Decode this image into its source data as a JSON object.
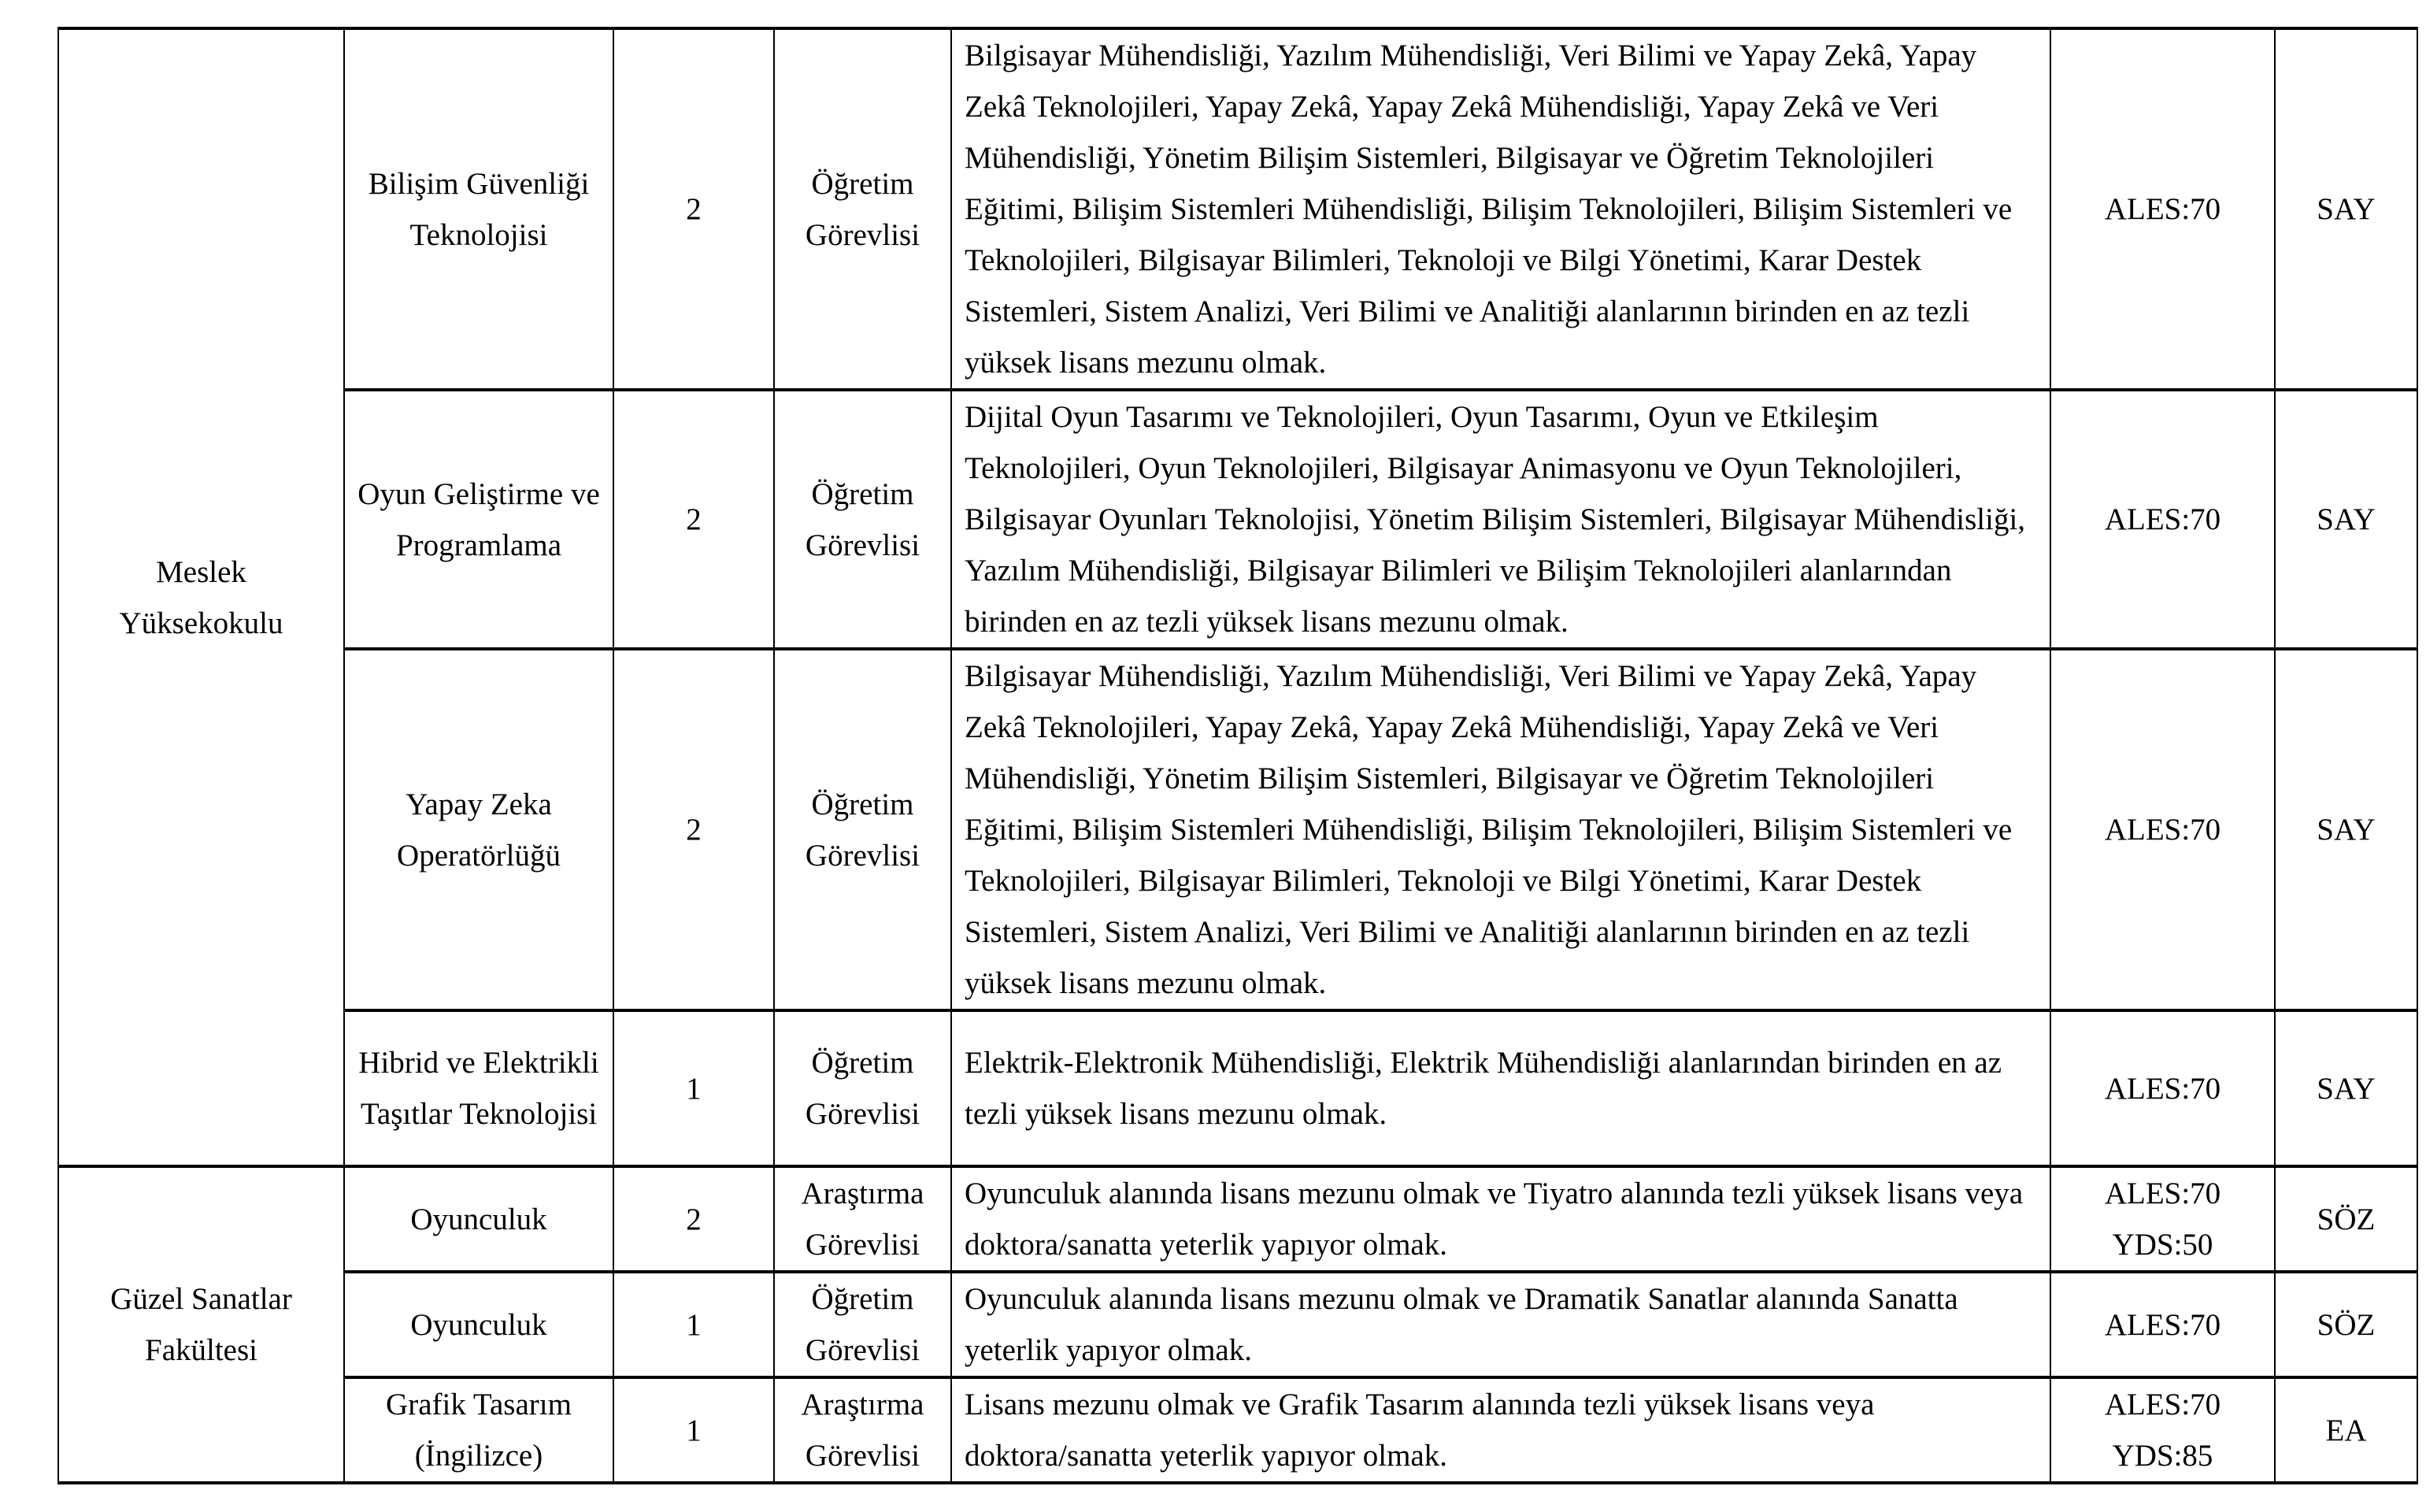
{
  "rows": [
    {
      "unit": "Meslek Yüksekokulu",
      "program": "Bilişim Güvenliği Teknolojisi",
      "count": "2",
      "title": "Öğretim Görevlisi",
      "requirement": "Bilgisayar Mühendisliği, Yazılım Mühendisliği, Veri Bilimi ve Yapay Zekâ, Yapay Zekâ Teknolojileri, Yapay Zekâ, Yapay Zekâ Mühendisliği, Yapay Zekâ ve Veri Mühendisliği, Yönetim Bilişim Sistemleri, Bilgisayar ve Öğretim Teknolojileri Eğitimi, Bilişim Sistemleri Mühendisliği, Bilişim Teknolojileri, Bilişim Sistemleri ve Teknolojileri, Bilgisayar Bilimleri, Teknoloji ve Bilgi Yönetimi, Karar Destek Sistemleri, Sistem Analizi, Veri Bilimi ve Analitiği alanlarının birinden en az tezli yüksek lisans mezunu olmak.",
      "exam": [
        "ALES:70"
      ],
      "score_type": "SAY"
    },
    {
      "program": "Oyun Geliştirme ve Programlama",
      "count": "2",
      "title": "Öğretim Görevlisi",
      "requirement": "Dijital Oyun Tasarımı ve Teknolojileri, Oyun Tasarımı, Oyun ve Etkileşim Teknolojileri, Oyun Teknolojileri, Bilgisayar Animasyonu ve Oyun Teknolojileri, Bilgisayar Oyunları Teknolojisi, Yönetim Bilişim Sistemleri, Bilgisayar Mühendisliği, Yazılım Mühendisliği, Bilgisayar Bilimleri ve Bilişim Teknolojileri alanlarından birinden en az tezli yüksek lisans mezunu olmak.",
      "exam": [
        "ALES:70"
      ],
      "score_type": "SAY"
    },
    {
      "program": "Yapay Zeka Operatörlüğü",
      "count": "2",
      "title": "Öğretim Görevlisi",
      "requirement": "Bilgisayar Mühendisliği, Yazılım Mühendisliği, Veri Bilimi ve Yapay Zekâ, Yapay Zekâ Teknolojileri, Yapay Zekâ, Yapay Zekâ Mühendisliği, Yapay Zekâ ve Veri Mühendisliği, Yönetim Bilişim Sistemleri, Bilgisayar ve Öğretim Teknolojileri Eğitimi, Bilişim Sistemleri Mühendisliği, Bilişim Teknolojileri, Bilişim Sistemleri ve Teknolojileri, Bilgisayar Bilimleri, Teknoloji ve Bilgi Yönetimi, Karar Destek Sistemleri, Sistem Analizi, Veri Bilimi ve Analitiği alanlarının birinden en az tezli yüksek lisans mezunu olmak.",
      "exam": [
        "ALES:70"
      ],
      "score_type": "SAY"
    },
    {
      "program": "Hibrid ve Elektrikli Taşıtlar Teknolojisi",
      "count": "1",
      "title": "Öğretim Görevlisi",
      "requirement": "Elektrik-Elektronik Mühendisliği, Elektrik Mühendisliği alanlarından birinden en az tezli yüksek lisans mezunu olmak.",
      "exam": [
        "ALES:70"
      ],
      "score_type": "SAY"
    },
    {
      "unit": "Güzel Sanatlar Fakültesi",
      "program": "Oyunculuk",
      "count": "2",
      "title": "Araştırma Görevlisi",
      "requirement": "Oyunculuk alanında lisans mezunu olmak ve Tiyatro alanında tezli yüksek lisans veya doktora/sanatta yeterlik yapıyor olmak.",
      "exam": [
        "ALES:70",
        "YDS:50"
      ],
      "score_type": "SÖZ"
    },
    {
      "program": "Oyunculuk",
      "count": "1",
      "title": "Öğretim Görevlisi",
      "requirement": "Oyunculuk alanında lisans mezunu olmak ve Dramatik Sanatlar alanında Sanatta yeterlik yapıyor olmak.",
      "exam": [
        "ALES:70"
      ],
      "score_type": "SÖZ"
    },
    {
      "program": "Grafik Tasarım (İngilizce)",
      "count": "1",
      "title": "Araştırma Görevlisi",
      "requirement": "Lisans mezunu olmak ve Grafik Tasarım alanında tezli yüksek lisans veya doktora/sanatta yeterlik yapıyor olmak.",
      "exam": [
        "ALES:70",
        "YDS:85"
      ],
      "score_type": "EA"
    }
  ]
}
